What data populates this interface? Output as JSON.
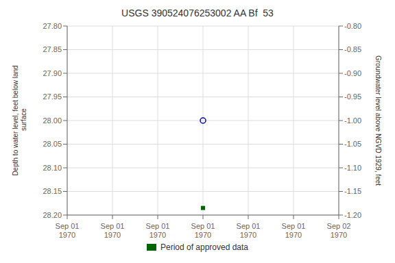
{
  "chart_data": {
    "type": "scatter",
    "title": "USGS 390524076253002 AA Bf  53",
    "categories": [
      "Sep 01\n1970",
      "Sep 01\n1970",
      "Sep 01\n1970",
      "Sep 01\n1970",
      "Sep 01\n1970",
      "Sep 01\n1970",
      "Sep 02\n1970"
    ],
    "series": [
      {
        "color": "#0000cc",
        "marker": "circle_open",
        "line_style": "none",
        "values": [
          null,
          null,
          null,
          28.0,
          null,
          null,
          null
        ]
      },
      {
        "name": "Period of approved data",
        "color": "#006400",
        "marker": "square",
        "line_style": "none",
        "values": [
          null,
          null,
          null,
          28.185,
          null,
          null,
          null
        ]
      }
    ],
    "ylabel": "Depth to water level, feet below land\n surface",
    "y2label": "Groundwater level above NGVD 1929, feet",
    "ylim": [
      28.2,
      27.8
    ],
    "yticks": [
      {
        "value": 27.8,
        "label": "27.80"
      },
      {
        "value": 27.85,
        "label": "27.85"
      },
      {
        "value": 27.9,
        "label": "27.90"
      },
      {
        "value": 27.95,
        "label": "27.95"
      },
      {
        "value": 28.0,
        "label": "28.00"
      },
      {
        "value": 28.05,
        "label": "28.05"
      },
      {
        "value": 28.1,
        "label": "28.10"
      },
      {
        "value": 28.15,
        "label": "28.15"
      },
      {
        "value": 28.2,
        "label": "28.20"
      }
    ],
    "y2lim": [
      -1.2,
      -0.8
    ],
    "y2ticks": [
      {
        "value": -0.8,
        "label": "-0.80"
      },
      {
        "value": -0.85,
        "label": "-0.85"
      },
      {
        "value": -0.9,
        "label": "-0.90"
      },
      {
        "value": -0.95,
        "label": "-0.95"
      },
      {
        "value": -1.0,
        "label": "-1.00"
      },
      {
        "value": -1.05,
        "label": "-1.05"
      },
      {
        "value": -1.1,
        "label": "-1.10"
      },
      {
        "value": -1.15,
        "label": "-1.15"
      },
      {
        "value": -1.2,
        "label": "-1.20"
      }
    ],
    "grid": true,
    "legend": "bottom"
  }
}
